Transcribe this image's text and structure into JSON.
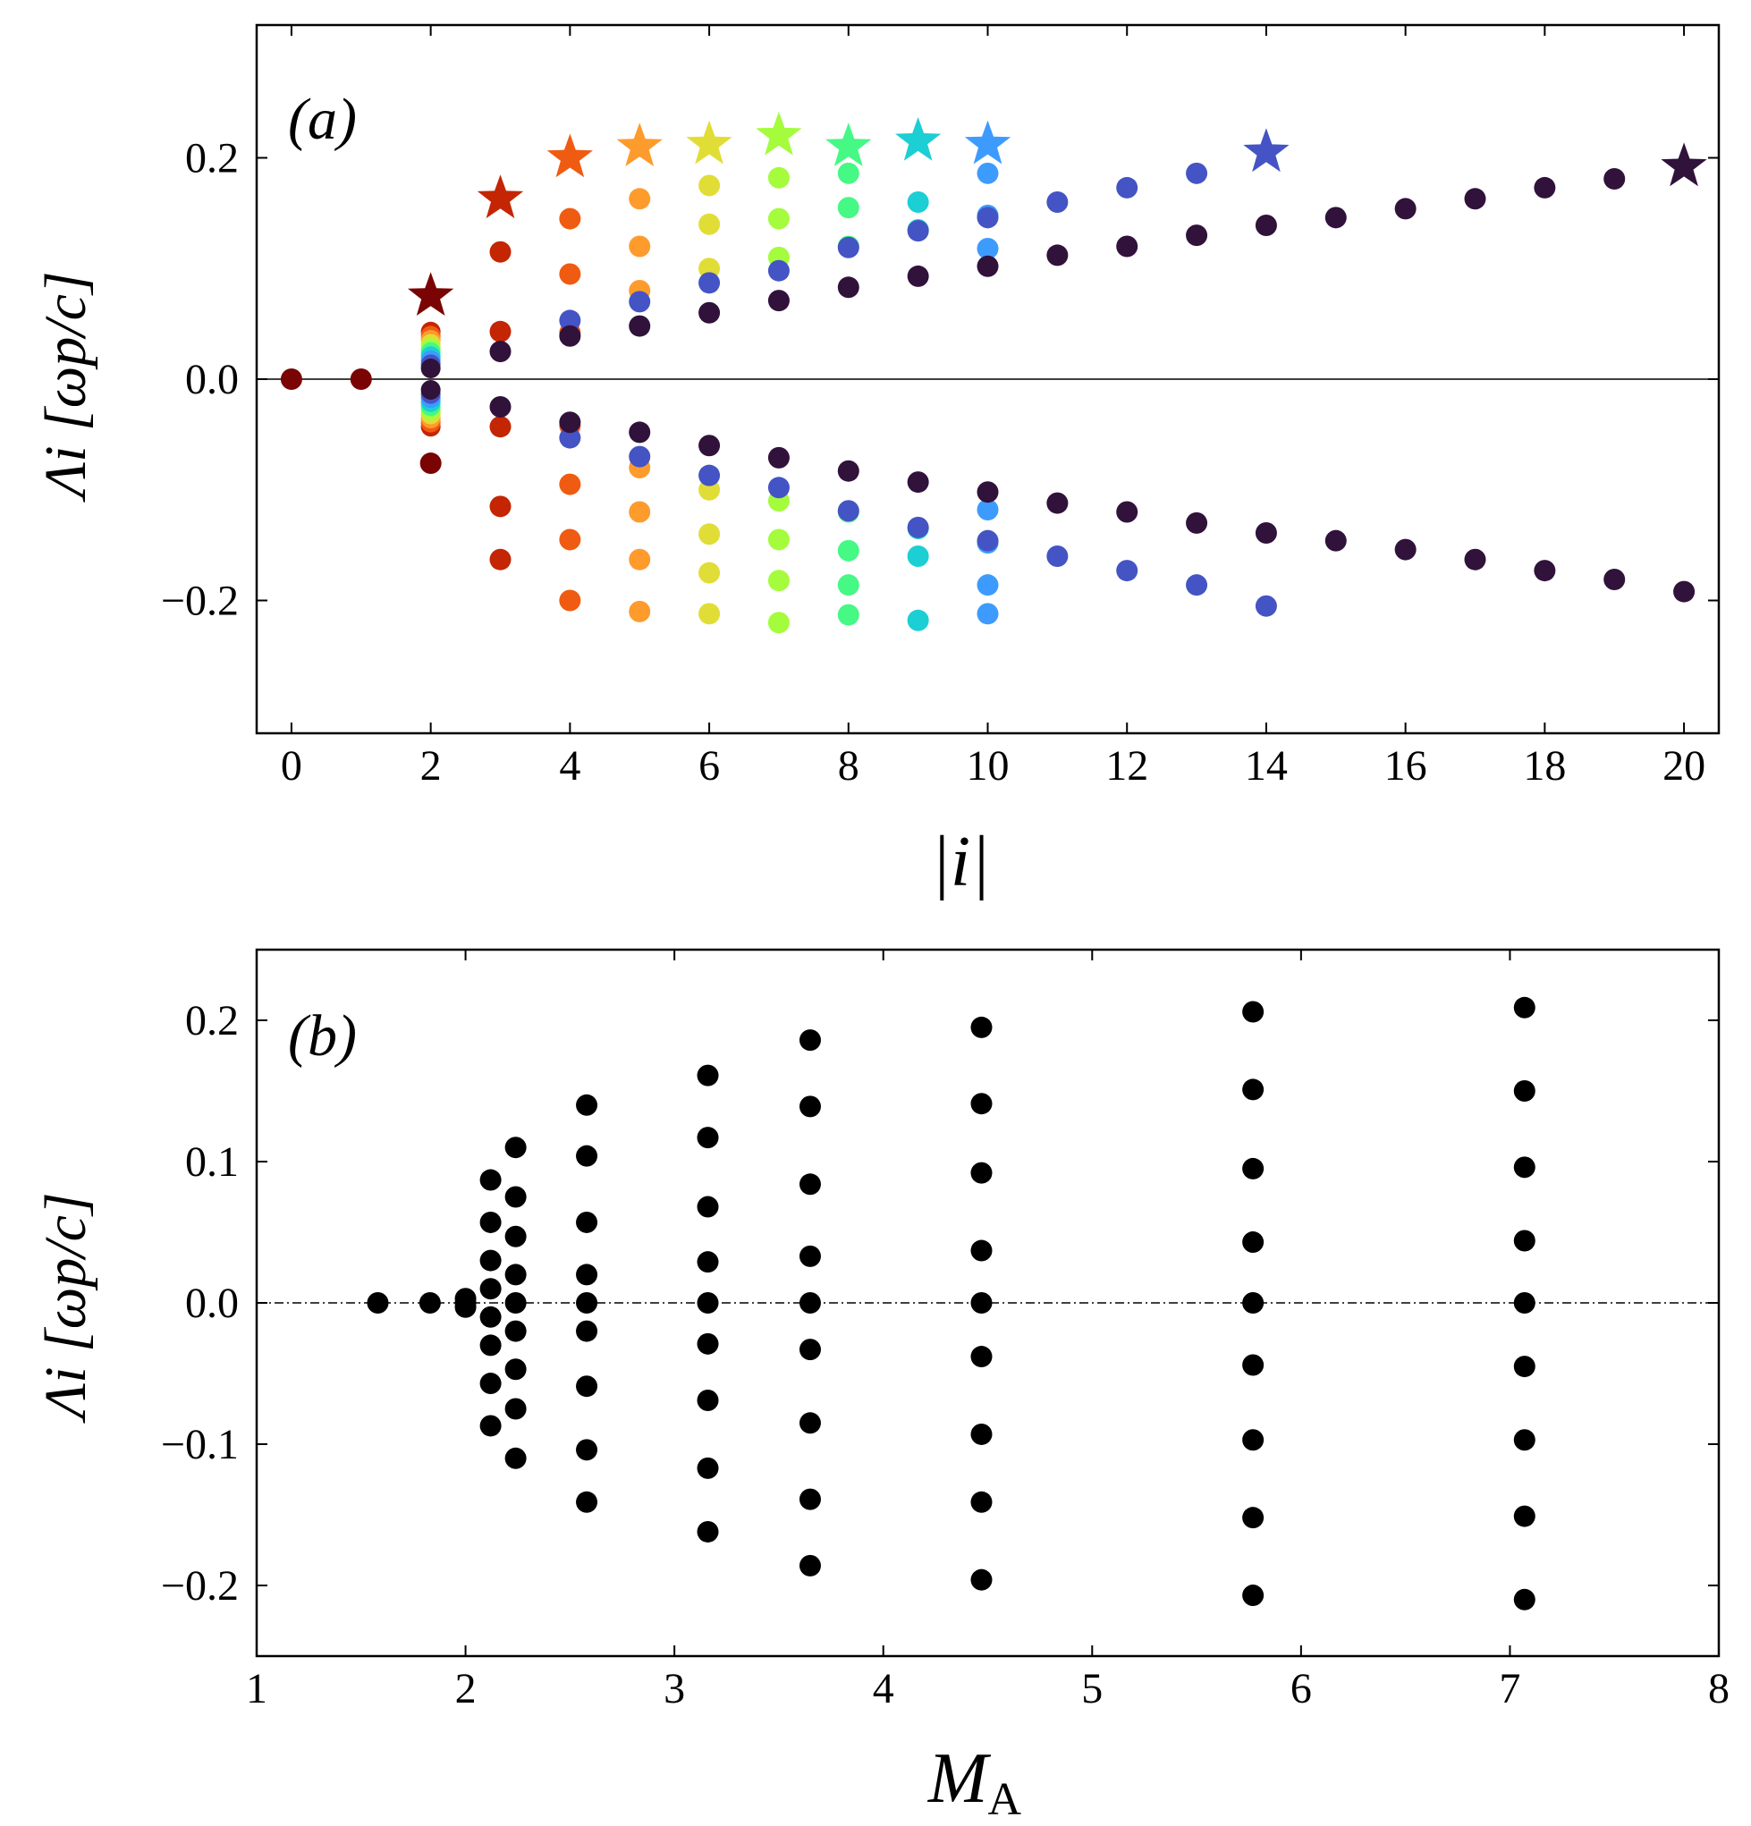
{
  "chart_data": [
    {
      "panel": "(a)",
      "type": "scatter",
      "xlabel": "|i|",
      "ylabel": "Λi [ωp/c]",
      "xlim": [
        -0.5,
        20.5
      ],
      "ylim": [
        -0.32,
        0.32
      ],
      "xticks": [
        0,
        2,
        4,
        6,
        8,
        10,
        12,
        14,
        16,
        18,
        20
      ],
      "yticks": [
        -0.2,
        0.0,
        0.2
      ],
      "ytick_labels": [
        "−0.2",
        "0.0",
        "0.2"
      ],
      "zero_line": "solid",
      "marker_note": "star = largest positive eigenvalue of each series; colour identifies series",
      "series": [
        {
          "color": "#7a0403",
          "x": 0,
          "max": 0.0,
          "positive": [],
          "negative": []
        },
        {
          "color": "#7a0403",
          "x": 1,
          "max": 0.0,
          "positive": [],
          "negative": []
        },
        {
          "color": "#7a0403",
          "x": 2,
          "max": 0.075,
          "positive": [],
          "negative": [
            -0.076
          ]
        },
        {
          "color": "#c42503",
          "x": 3,
          "max": 0.163,
          "positive": [
            0.115,
            0.043
          ],
          "negative": [
            -0.043,
            -0.115,
            -0.163
          ]
        },
        {
          "color": "#f05b12",
          "x": 4,
          "max": 0.2,
          "positive": [
            0.145,
            0.095,
            0.042
          ],
          "negative": [
            -0.042,
            -0.095,
            -0.145,
            -0.2
          ]
        },
        {
          "color": "#fe9b2d",
          "x": 5,
          "max": 0.21,
          "positive": [
            0.163,
            0.12,
            0.08
          ],
          "negative": [
            -0.08,
            -0.12,
            -0.163,
            -0.21
          ]
        },
        {
          "color": "#e1dd37",
          "x": 6,
          "max": 0.212,
          "positive": [
            0.175,
            0.14,
            0.1
          ],
          "negative": [
            -0.1,
            -0.14,
            -0.175,
            -0.212
          ]
        },
        {
          "color": "#a4fc3c",
          "x": 7,
          "max": 0.22,
          "positive": [
            0.182,
            0.145,
            0.11
          ],
          "negative": [
            -0.11,
            -0.145,
            -0.182,
            -0.22
          ]
        },
        {
          "color": "#46f884",
          "x": 8,
          "max": 0.21,
          "positive": [
            0.186,
            0.155,
            0.12
          ],
          "negative": [
            -0.12,
            -0.155,
            -0.186,
            -0.213
          ]
        },
        {
          "color": "#1bcfd4",
          "x": 9,
          "max": 0.215,
          "positive": [
            0.16,
            0.135
          ],
          "negative": [
            -0.135,
            -0.16,
            -0.218
          ]
        },
        {
          "color": "#3e9bfe",
          "x": 10,
          "max": 0.212,
          "positive": [
            0.186,
            0.148,
            0.118
          ],
          "negative": [
            -0.118,
            -0.148,
            -0.186,
            -0.212
          ]
        },
        {
          "color": "#4454c4",
          "x": 14,
          "max": 0.205,
          "positive": [
            0.186,
            0.173,
            0.16,
            0.146,
            0.134,
            0.119,
            0.098,
            0.087,
            0.07,
            0.053
          ],
          "negative": [
            -0.053,
            -0.07,
            -0.087,
            -0.098,
            -0.119,
            -0.134,
            -0.146,
            -0.16,
            -0.173,
            -0.186,
            -0.205
          ]
        },
        {
          "color": "#30123b",
          "x": 20,
          "max": 0.192,
          "positive": [
            0.181,
            0.173,
            0.163,
            0.154,
            0.146,
            0.139,
            0.13,
            0.12,
            0.112,
            0.102,
            0.093,
            0.083,
            0.071,
            0.06,
            0.048,
            0.039,
            0.025
          ],
          "negative": [
            -0.025,
            -0.039,
            -0.048,
            -0.06,
            -0.071,
            -0.083,
            -0.093,
            -0.102,
            -0.112,
            -0.12,
            -0.13,
            -0.139,
            -0.146,
            -0.154,
            -0.163,
            -0.173,
            -0.181,
            -0.192
          ]
        }
      ]
    },
    {
      "panel": "(b)",
      "type": "scatter",
      "xlabel": "M_A",
      "ylabel": "Λi [ωp/c]",
      "xlim": [
        1,
        8
      ],
      "ylim": [
        -0.25,
        0.25
      ],
      "xticks": [
        1,
        2,
        3,
        4,
        5,
        6,
        7,
        8
      ],
      "yticks": [
        -0.2,
        -0.1,
        0.0,
        0.1,
        0.2
      ],
      "ytick_labels": [
        "−0.2",
        "−0.1",
        "0.0",
        "0.1",
        "0.2"
      ],
      "zero_line": "dash-dot",
      "marker_color": "#000000",
      "columns": [
        {
          "x": 1.58,
          "y": [
            0.0
          ]
        },
        {
          "x": 1.83,
          "y": [
            0.0
          ]
        },
        {
          "x": 2.0,
          "y": [
            0.0,
            0.003,
            -0.003
          ]
        },
        {
          "x": 2.12,
          "y": [
            0.087,
            0.057,
            0.03,
            0.01,
            -0.01,
            -0.03,
            -0.057,
            -0.087
          ]
        },
        {
          "x": 2.24,
          "y": [
            0.11,
            0.075,
            0.047,
            0.02,
            0.0,
            -0.02,
            -0.047,
            -0.075,
            -0.11
          ]
        },
        {
          "x": 2.58,
          "y": [
            0.14,
            0.104,
            0.057,
            0.02,
            0.0,
            -0.02,
            -0.059,
            -0.104,
            -0.141
          ]
        },
        {
          "x": 3.16,
          "y": [
            0.161,
            0.117,
            0.068,
            0.029,
            0.0,
            -0.029,
            -0.069,
            -0.117,
            -0.162
          ]
        },
        {
          "x": 3.65,
          "y": [
            0.186,
            0.139,
            0.084,
            0.033,
            0.0,
            -0.033,
            -0.085,
            -0.139,
            -0.186
          ]
        },
        {
          "x": 4.47,
          "y": [
            0.195,
            0.141,
            0.092,
            0.037,
            0.0,
            -0.038,
            -0.093,
            -0.141,
            -0.196
          ]
        },
        {
          "x": 5.77,
          "y": [
            0.206,
            0.151,
            0.095,
            0.043,
            0.0,
            -0.044,
            -0.097,
            -0.152,
            -0.207
          ]
        },
        {
          "x": 7.07,
          "y": [
            0.209,
            0.15,
            0.096,
            0.044,
            0.0,
            -0.045,
            -0.097,
            -0.151,
            -0.21
          ]
        }
      ]
    }
  ]
}
